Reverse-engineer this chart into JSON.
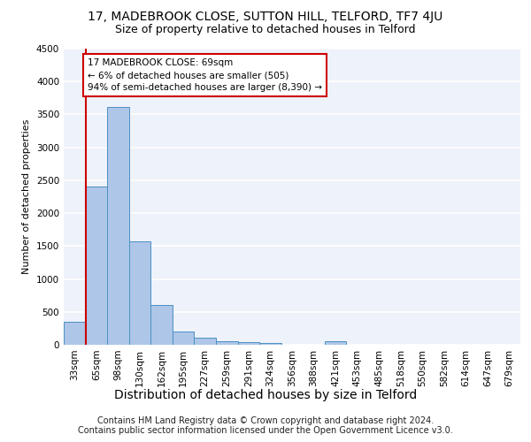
{
  "title_line1": "17, MADEBROOK CLOSE, SUTTON HILL, TELFORD, TF7 4JU",
  "title_line2": "Size of property relative to detached houses in Telford",
  "xlabel": "Distribution of detached houses by size in Telford",
  "ylabel": "Number of detached properties",
  "footer_line1": "Contains HM Land Registry data © Crown copyright and database right 2024.",
  "footer_line2": "Contains public sector information licensed under the Open Government Licence v3.0.",
  "categories": [
    "33sqm",
    "65sqm",
    "98sqm",
    "130sqm",
    "162sqm",
    "195sqm",
    "227sqm",
    "259sqm",
    "291sqm",
    "324sqm",
    "356sqm",
    "388sqm",
    "421sqm",
    "453sqm",
    "485sqm",
    "518sqm",
    "550sqm",
    "582sqm",
    "614sqm",
    "647sqm",
    "679sqm"
  ],
  "values": [
    350,
    2400,
    3620,
    1570,
    600,
    200,
    105,
    60,
    40,
    30,
    0,
    0,
    60,
    0,
    0,
    0,
    0,
    0,
    0,
    0,
    0
  ],
  "bar_color": "#aec6e8",
  "bar_edge_color": "#4a90c4",
  "property_line_color": "#cc0000",
  "annotation_text": "17 MADEBROOK CLOSE: 69sqm\n← 6% of detached houses are smaller (505)\n94% of semi-detached houses are larger (8,390) →",
  "annotation_box_color": "#cc0000",
  "annotation_text_color": "#000000",
  "ylim": [
    0,
    4500
  ],
  "bg_color": "#eef2fa",
  "grid_color": "#ffffff",
  "title1_fontsize": 10,
  "title2_fontsize": 9,
  "xlabel_fontsize": 10,
  "ylabel_fontsize": 8,
  "tick_fontsize": 7.5,
  "footer_fontsize": 7,
  "annotation_fontsize": 7.5
}
